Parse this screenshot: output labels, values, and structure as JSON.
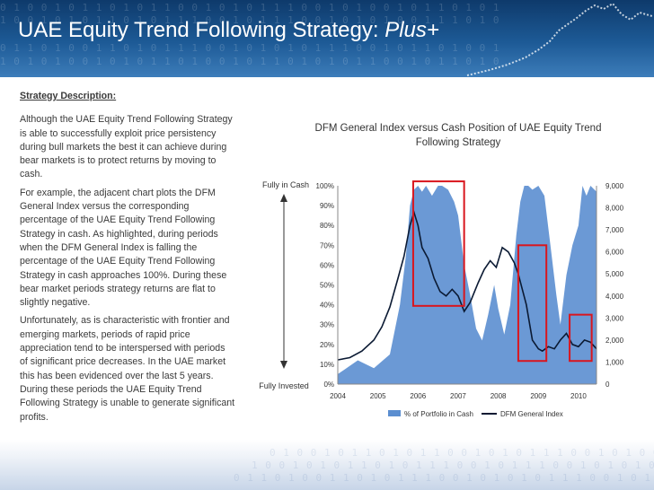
{
  "slide": {
    "title_main": "UAE Equity Trend Following Strategy:",
    "title_plus": "Plus+",
    "binary_rows": [
      "0 1 0 0 1 0 1 1 0 1 0 1 1 0 0 1 0 1 0 1 1 1 0 0 1 0 1 0 0 1 0 1 1 0 1 0 1",
      "1 0 0 1 0 1 0 1 1 0 1 0 1 1 1 0 0 1 0 1 1 1 0 0 1 0 1 0 1 0 0 1 1 1 0 1 0",
      "0 1 1 0 1 0 0 1 1 0 1 0 1 1 1 0 0 1 0 1 0 1 0 1 1 1 0 0 1 0 1 1 0 1 0 0 1",
      "1 0 1 0 1 0 0 1 0 1 0 1 1 0 1 0 0 1 0 1 1 0 1 0 1 0 1 1 0 0 1 0 1 1 0 1 0"
    ]
  },
  "description": {
    "heading": "Strategy Description:",
    "paragraphs": [
      "Although the UAE Equity Trend Following Strategy is able to successfully exploit price persistency during bull markets the best it can achieve during bear markets is to protect returns by moving to cash.",
      "For example, the adjacent chart plots the DFM General Index versus the corresponding percentage of the UAE Equity Trend Following Strategy in cash.  As highlighted, during periods when the DFM General Index is falling the percentage of the UAE Equity Trend Following Strategy in cash approaches 100%. During these bear market periods strategy returns are flat to slightly negative.",
      "Unfortunately, as is characteristic with frontier and emerging markets, periods of rapid price appreciation tend to be interspersed with periods of significant price decreases.  In the UAE market this has been evidenced over the last 5 years.  During these periods the UAE Equity Trend Following Strategy is unable to generate significant profits."
    ]
  },
  "chart_data": {
    "type": "area",
    "title": "DFM General Index versus Cash Position of UAE Equity Trend Following Strategy",
    "annotation_top": "Fully in Cash",
    "annotation_bottom": "Fully Invested",
    "x_ticks": [
      "2004",
      "2005",
      "2006",
      "2007",
      "2008",
      "2009",
      "2010"
    ],
    "xlim": [
      2004.0,
      2010.45
    ],
    "y_left": {
      "ticks": [
        "0%",
        "10%",
        "20%",
        "30%",
        "40%",
        "50%",
        "60%",
        "70%",
        "80%",
        "90%",
        "100%"
      ],
      "ylim": [
        0,
        100
      ]
    },
    "y_right": {
      "ticks": [
        "0",
        "1,000",
        "2,000",
        "3,000",
        "4,000",
        "5,000",
        "6,000",
        "7,000",
        "8,000",
        "9,000"
      ],
      "ylim": [
        0,
        9000
      ]
    },
    "grid": false,
    "legend": {
      "position": "bottom",
      "entries": [
        "% of Portfolio in Cash",
        "DFM General Index"
      ]
    },
    "colors": {
      "cash_area": "#5b8ed0",
      "index_line": "#0b1a33",
      "highlight": "#d9161e"
    },
    "series": [
      {
        "name": "% of Portfolio in Cash",
        "axis": "left",
        "x": [
          2004.0,
          2004.5,
          2004.9,
          2005.3,
          2005.55,
          2005.7,
          2005.8,
          2005.9,
          2006.0,
          2006.1,
          2006.2,
          2006.35,
          2006.5,
          2006.6,
          2006.75,
          2006.9,
          2007.0,
          2007.15,
          2007.3,
          2007.45,
          2007.6,
          2007.75,
          2007.9,
          2008.0,
          2008.15,
          2008.3,
          2008.45,
          2008.55,
          2008.65,
          2008.75,
          2008.85,
          2009.0,
          2009.15,
          2009.3,
          2009.45,
          2009.55,
          2009.7,
          2009.85,
          2010.0,
          2010.1,
          2010.2,
          2010.3,
          2010.45
        ],
        "values": [
          5,
          12,
          8,
          15,
          40,
          65,
          90,
          98,
          100,
          97,
          100,
          95,
          100,
          100,
          98,
          92,
          85,
          60,
          45,
          28,
          22,
          35,
          50,
          38,
          25,
          40,
          75,
          92,
          100,
          100,
          98,
          100,
          95,
          70,
          45,
          30,
          55,
          70,
          80,
          100,
          95,
          100,
          97
        ]
      },
      {
        "name": "DFM General Index",
        "axis": "right",
        "x": [
          2004.0,
          2004.3,
          2004.6,
          2004.9,
          2005.1,
          2005.3,
          2005.5,
          2005.65,
          2005.8,
          2005.9,
          2006.0,
          2006.1,
          2006.25,
          2006.4,
          2006.55,
          2006.7,
          2006.85,
          2007.0,
          2007.15,
          2007.3,
          2007.5,
          2007.65,
          2007.8,
          2007.95,
          2008.1,
          2008.25,
          2008.4,
          2008.5,
          2008.6,
          2008.7,
          2008.85,
          2009.0,
          2009.1,
          2009.25,
          2009.4,
          2009.55,
          2009.7,
          2009.85,
          2010.0,
          2010.15,
          2010.3,
          2010.45
        ],
        "values": [
          1100,
          1200,
          1500,
          2000,
          2600,
          3500,
          4800,
          5800,
          7200,
          7800,
          7200,
          6200,
          5700,
          4800,
          4200,
          4000,
          4300,
          4000,
          3300,
          3700,
          4600,
          5200,
          5600,
          5300,
          6200,
          6000,
          5500,
          5000,
          4300,
          3600,
          2000,
          1600,
          1500,
          1700,
          1600,
          2000,
          2300,
          1800,
          1700,
          2000,
          1900,
          1600
        ]
      }
    ]
  }
}
